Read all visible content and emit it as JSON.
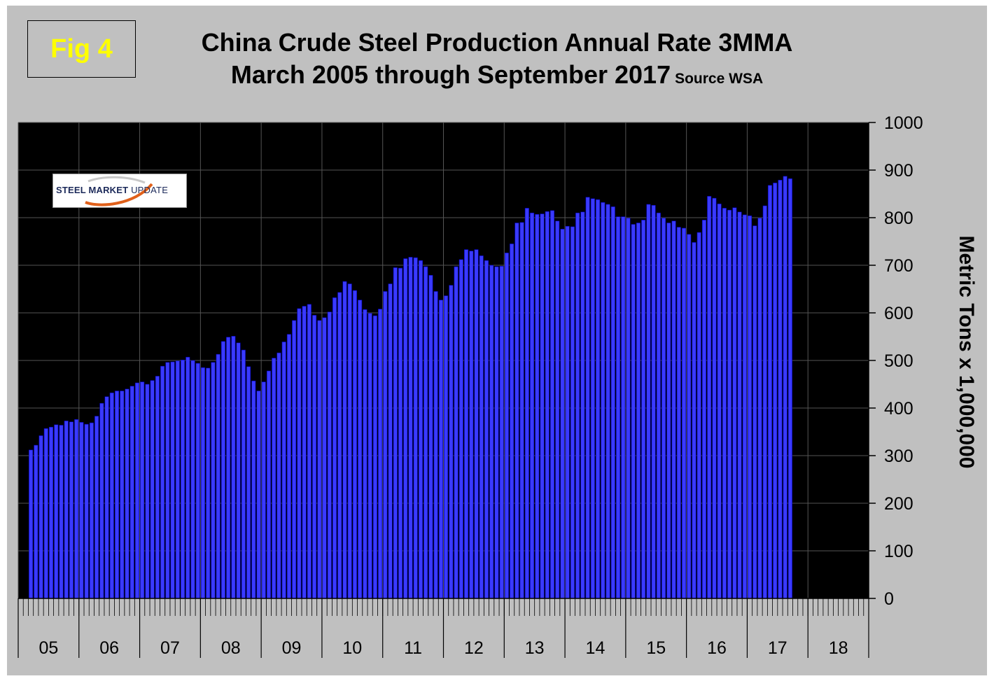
{
  "figure": {
    "badge": "Fig 4"
  },
  "logo": {
    "text_bold": "STEEL MARKET",
    "text_light": "UPDATE"
  },
  "colors": {
    "bar_fill": "#3a3aff",
    "bar_stroke": "#0000aa",
    "plot_bg": "#000000",
    "frame_bg": "#c0c0c0",
    "badge_text": "#ffff00"
  },
  "chart_data": {
    "type": "bar",
    "title": "China Crude Steel Production Annual Rate 3MMA",
    "subtitle": "March 2005 through September 2017",
    "source": "Source WSA",
    "xlabel": "",
    "ylabel": "Metric Tons x 1,000,000",
    "ylim": [
      0,
      1000
    ],
    "yticks": [
      0,
      100,
      200,
      300,
      400,
      500,
      600,
      700,
      800,
      900,
      1000
    ],
    "year_labels": [
      "05",
      "06",
      "07",
      "08",
      "09",
      "10",
      "11",
      "12",
      "13",
      "14",
      "15",
      "16",
      "17",
      "18"
    ],
    "start": "2005-03",
    "end": "2017-09",
    "grid": true,
    "values": [
      312,
      322,
      342,
      357,
      360,
      365,
      364,
      373,
      371,
      376,
      370,
      366,
      369,
      383,
      410,
      424,
      432,
      436,
      436,
      440,
      446,
      453,
      455,
      450,
      458,
      467,
      488,
      496,
      497,
      499,
      501,
      507,
      500,
      494,
      485,
      484,
      496,
      513,
      540,
      549,
      551,
      537,
      522,
      487,
      457,
      436,
      455,
      478,
      505,
      516,
      539,
      555,
      584,
      609,
      614,
      618,
      595,
      584,
      590,
      602,
      632,
      643,
      666,
      661,
      647,
      627,
      607,
      599,
      594,
      608,
      645,
      661,
      695,
      694,
      714,
      717,
      716,
      710,
      697,
      679,
      645,
      627,
      636,
      658,
      697,
      712,
      733,
      730,
      733,
      720,
      710,
      700,
      697,
      698,
      726,
      745,
      789,
      790,
      820,
      810,
      807,
      808,
      813,
      815,
      793,
      776,
      782,
      781,
      810,
      812,
      843,
      840,
      838,
      832,
      828,
      823,
      802,
      802,
      799,
      786,
      789,
      795,
      828,
      826,
      810,
      799,
      789,
      793,
      780,
      778,
      765,
      748,
      769,
      795,
      845,
      841,
      829,
      820,
      816,
      821,
      812,
      806,
      804,
      783,
      799,
      825,
      868,
      873,
      879,
      887,
      882
    ]
  }
}
